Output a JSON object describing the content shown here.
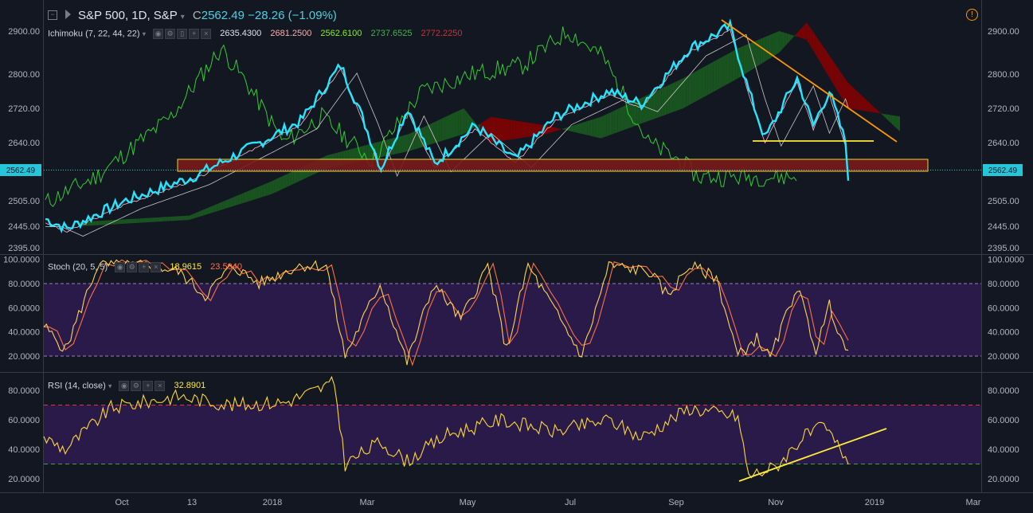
{
  "header": {
    "symbol": "S&P 500, 1D, S&P",
    "close_prefix": "C",
    "close_value": "2562.49",
    "change": "−28.26 (−1.09%)"
  },
  "ichimoku": {
    "label": "Ichimoku (7, 22, 44, 22)",
    "values": [
      "2635.4300",
      "2681.2500",
      "2562.6100",
      "2737.6525",
      "2772.2250"
    ],
    "colors": [
      "#e0e3eb",
      "#f4b2b2",
      "#7cfc00",
      "#4caf50",
      "#d32f2f"
    ]
  },
  "stoch": {
    "label": "Stoch (20, 5, 5)",
    "values": [
      "18.9615",
      "23.5940"
    ],
    "colors": [
      "#ffeb3b",
      "#ff7043"
    ]
  },
  "rsi": {
    "label": "RSI (14, close)",
    "value": "32.8901",
    "color": "#ffeb3b"
  },
  "price_axis": {
    "ticks": [
      "2900.00",
      "2800.00",
      "2720.00",
      "2640.00",
      "2505.00",
      "2445.00",
      "2395.00"
    ],
    "current": "2562.49"
  },
  "stoch_axis": {
    "ticks": [
      "100.0000",
      "80.0000",
      "60.0000",
      "40.0000",
      "20.0000"
    ]
  },
  "rsi_axis": {
    "ticks": [
      "80.0000",
      "60.0000",
      "40.0000",
      "20.0000"
    ]
  },
  "time_axis": {
    "labels": [
      "Oct",
      "13",
      "2018",
      "Mar",
      "May",
      "Jul",
      "Sep",
      "Nov",
      "2019",
      "Mar"
    ]
  },
  "colors": {
    "background": "#131722",
    "price_line": "#26e5ff",
    "overbought_zone": "#2a1a4a",
    "support_zone": "#7a1a1a",
    "trendline_down": "#ff9800",
    "support_line": "#ffeb3b"
  }
}
